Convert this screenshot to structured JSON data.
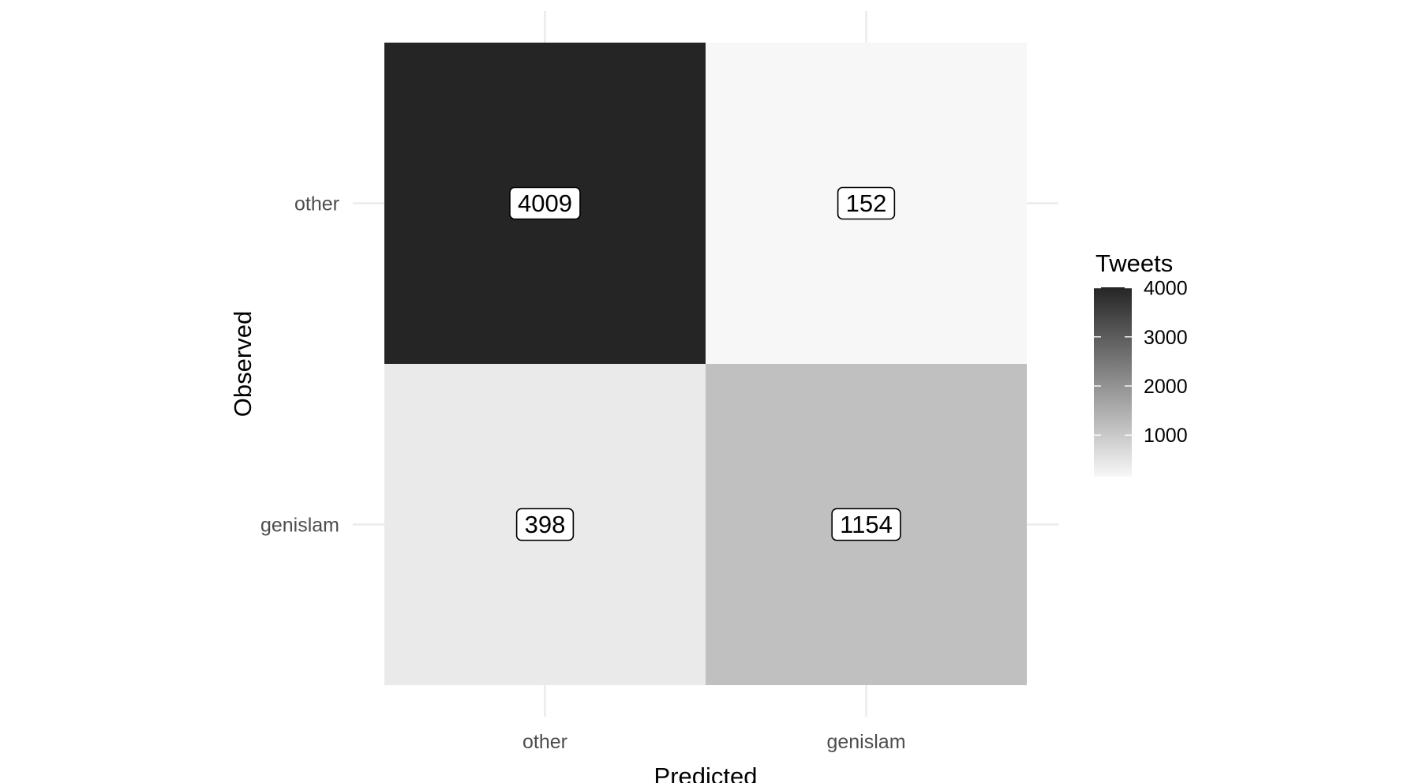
{
  "chart_data": {
    "type": "heatmap",
    "title": "",
    "xlabel": "Predicted",
    "ylabel": "Observed",
    "x_categories": [
      "other",
      "genislam"
    ],
    "y_categories": [
      "other",
      "genislam"
    ],
    "cells": [
      {
        "x": "other",
        "y": "other",
        "value": 4009,
        "label": "4009"
      },
      {
        "x": "genislam",
        "y": "other",
        "value": 152,
        "label": "152"
      },
      {
        "x": "other",
        "y": "genislam",
        "value": 398,
        "label": "398"
      },
      {
        "x": "genislam",
        "y": "genislam",
        "value": 1154,
        "label": "1154"
      }
    ],
    "grid": true,
    "legend": {
      "title": "Tweets",
      "placement": "right",
      "min": 152,
      "max": 4009,
      "ticks": [
        1000,
        2000,
        3000,
        4000
      ],
      "tick_labels": [
        "1000",
        "2000",
        "3000",
        "4000"
      ],
      "low_color": "#f7f7f7",
      "high_color": "#252525"
    }
  }
}
